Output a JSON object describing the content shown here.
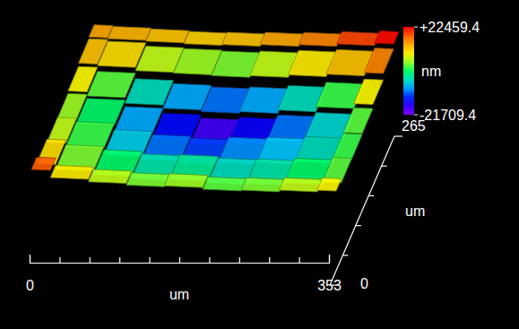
{
  "chart_data": {
    "type": "surface3d",
    "x": [
      0,
      44,
      88,
      132,
      176,
      221,
      265,
      309,
      353
    ],
    "y": [
      0,
      44,
      88,
      133,
      177,
      221,
      265
    ],
    "z": [
      [
        18000,
        9000,
        6000,
        4000,
        5000,
        3000,
        4000,
        6000,
        8000
      ],
      [
        10000,
        4000,
        0,
        -3000,
        -2000,
        -4000,
        -3000,
        0,
        3000
      ],
      [
        6000,
        2000,
        -6000,
        -10000,
        -12000,
        -9000,
        -7000,
        -4000,
        2000
      ],
      [
        5000,
        0,
        -8000,
        -14000,
        -18000,
        -15000,
        -10000,
        -5000,
        3000
      ],
      [
        8000,
        3000,
        -4000,
        -8000,
        -10000,
        -8000,
        -4000,
        2000,
        8000
      ],
      [
        12000,
        10000,
        6000,
        5000,
        4000,
        6000,
        9000,
        12000,
        16000
      ],
      [
        14000,
        13000,
        12000,
        11000,
        12000,
        14000,
        16000,
        19000,
        22000
      ]
    ],
    "xlabel": "um",
    "ylabel": "um",
    "xlim": [
      0,
      353
    ],
    "xticks": [
      0,
      353
    ],
    "x_minor_ticks": [
      35.3,
      70.6,
      105.9,
      141.2,
      176.5,
      211.8,
      247.1,
      282.4,
      317.7
    ],
    "ylim": [
      0,
      265
    ],
    "yticks": [
      0,
      265
    ],
    "y_minor_ticks": [
      53,
      106,
      159,
      212
    ],
    "colorbar": {
      "label": "nm",
      "range": [
        -21709.4,
        22459.4
      ],
      "ticks": [
        {
          "value": 22459.4,
          "label": "+22459.4"
        },
        -21709.4
      ]
    }
  }
}
